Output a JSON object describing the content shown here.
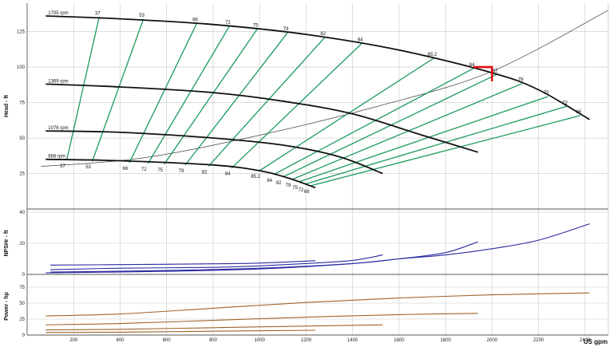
{
  "chart_data": [
    {
      "type": "line",
      "panel": "head",
      "ylabel": "Head - ft",
      "ylim": [
        0,
        145
      ],
      "yticks": [
        25,
        50,
        75,
        100,
        125
      ],
      "x_unit_label": "US gpm",
      "xticks": [
        200,
        400,
        600,
        800,
        1000,
        1200,
        1400,
        1600,
        1800,
        2000,
        2200,
        2400
      ],
      "xlim": [
        0,
        2500
      ],
      "grid": true,
      "speed_curves": [
        {
          "name": "1705 rpm",
          "x": [
            80,
            400,
            800,
            1200,
            1600,
            2000,
            2200,
            2420
          ],
          "y": [
            136,
            134,
            130,
            123,
            112,
            96,
            84,
            63
          ]
        },
        {
          "name": "1369 rpm",
          "x": [
            80,
            400,
            800,
            1100,
            1400,
            1700,
            1940
          ],
          "y": [
            88,
            86,
            82,
            76,
            67,
            52,
            40
          ]
        },
        {
          "name": "1076 rpm",
          "x": [
            80,
            400,
            800,
            1100,
            1340,
            1530
          ],
          "y": [
            55,
            54,
            50,
            45,
            37,
            25
          ]
        },
        {
          "name": "868 rpm",
          "x": [
            80,
            400,
            800,
            1000,
            1120,
            1240
          ],
          "y": [
            35,
            34,
            31,
            27,
            22,
            15
          ]
        }
      ],
      "efficiency_lines": [
        {
          "label": "37",
          "top": [
            310,
            135.3
          ],
          "bottom": [
            170,
            34.3
          ]
        },
        {
          "label": "53",
          "top": [
            500,
            133.7
          ],
          "bottom": [
            280,
            33.6
          ]
        },
        {
          "label": "66",
          "top": [
            730,
            130.8
          ],
          "bottom": [
            440,
            32.6
          ]
        },
        {
          "label": "72",
          "top": [
            870,
            128.8
          ],
          "bottom": [
            520,
            32.0
          ]
        },
        {
          "label": "75",
          "top": [
            990,
            126.8
          ],
          "bottom": [
            590,
            31.6
          ]
        },
        {
          "label": "79",
          "top": [
            1120,
            124.1
          ],
          "bottom": [
            680,
            30.9
          ]
        },
        {
          "label": "82",
          "top": [
            1280,
            120.8
          ],
          "bottom": [
            780,
            30.1
          ]
        },
        {
          "label": "84",
          "top": [
            1440,
            116.7
          ],
          "bottom": [
            880,
            28.9
          ]
        },
        {
          "label": "85.2",
          "top": [
            1750,
            106.3
          ],
          "bottom": [
            1000,
            27.0
          ]
        },
        {
          "label": "84",
          "top": [
            1920,
            99.0
          ],
          "bottom": [
            1060,
            24.2
          ]
        },
        {
          "label": "82",
          "top": [
            2020,
            94.8
          ],
          "bottom": [
            1100,
            22.5
          ]
        },
        {
          "label": "79",
          "top": [
            2130,
            88.4
          ],
          "bottom": [
            1140,
            20.8
          ]
        },
        {
          "label": "75",
          "top": [
            2240,
            79.2
          ],
          "bottom": [
            1170,
            19.2
          ]
        },
        {
          "label": "72",
          "top": [
            2320,
            72.3
          ],
          "bottom": [
            1195,
            17.5
          ]
        },
        {
          "label": "66",
          "top": [
            2380,
            65.8
          ],
          "bottom": [
            1220,
            16.4
          ]
        }
      ],
      "system_curve": {
        "x": [
          60,
          500,
          1000,
          1500,
          2000,
          2500
        ],
        "y": [
          30,
          36,
          52,
          72,
          97,
          140
        ]
      },
      "operating_point": {
        "x": 2000,
        "y": 100,
        "drop_to_y": 90,
        "bracket_from_x": 1920
      }
    },
    {
      "type": "line",
      "panel": "npshr",
      "ylabel": "NPSHr - ft",
      "ylim": [
        0,
        40
      ],
      "yticks": [
        0,
        20,
        40
      ],
      "grid": true,
      "series": [
        {
          "name": "1705 rpm",
          "x": [
            80,
            600,
            1000,
            1400,
            1600,
            1800,
            2000,
            2200,
            2420
          ],
          "y": [
            1,
            2,
            3.5,
            7,
            10,
            12.5,
            16.5,
            22,
            32.5
          ]
        },
        {
          "name": "1369 rpm",
          "x": [
            100,
            600,
            1000,
            1400,
            1600,
            1800,
            1940
          ],
          "y": [
            1.5,
            2.5,
            4,
            7,
            10,
            14,
            21
          ]
        },
        {
          "name": "1076 rpm",
          "x": [
            100,
            400,
            800,
            1000,
            1200,
            1400,
            1530
          ],
          "y": [
            3,
            4,
            4.5,
            5.5,
            7,
            9,
            12.5
          ]
        },
        {
          "name": "868 rpm",
          "x": [
            100,
            400,
            800,
            1000,
            1240
          ],
          "y": [
            6,
            6.3,
            6.8,
            7.3,
            8.8
          ]
        }
      ]
    },
    {
      "type": "line",
      "panel": "power",
      "ylabel": "Power - hp",
      "ylim": [
        0,
        90
      ],
      "yticks": [
        0,
        25,
        50,
        75
      ],
      "grid": true,
      "series": [
        {
          "name": "1705 rpm",
          "x": [
            80,
            400,
            800,
            1200,
            1600,
            2000,
            2420
          ],
          "y": [
            30,
            33,
            42,
            51,
            58,
            63,
            66
          ]
        },
        {
          "name": "1369 rpm",
          "x": [
            80,
            400,
            800,
            1200,
            1600,
            1940
          ],
          "y": [
            16,
            18,
            23,
            28,
            32,
            34
          ]
        },
        {
          "name": "1076 rpm",
          "x": [
            80,
            400,
            800,
            1200,
            1530
          ],
          "y": [
            8,
            9,
            11.5,
            14,
            16
          ]
        },
        {
          "name": "868 rpm",
          "x": [
            80,
            400,
            800,
            1240
          ],
          "y": [
            4,
            4.5,
            6,
            7.5
          ]
        }
      ]
    }
  ],
  "colors": {
    "speed": "#111111",
    "efficiency": "#1a9a5c",
    "system": "#444444",
    "operating": "#e01010",
    "npsh": "#2a2aa0",
    "power": "#a0622a",
    "grid": "#c8c8c8"
  }
}
